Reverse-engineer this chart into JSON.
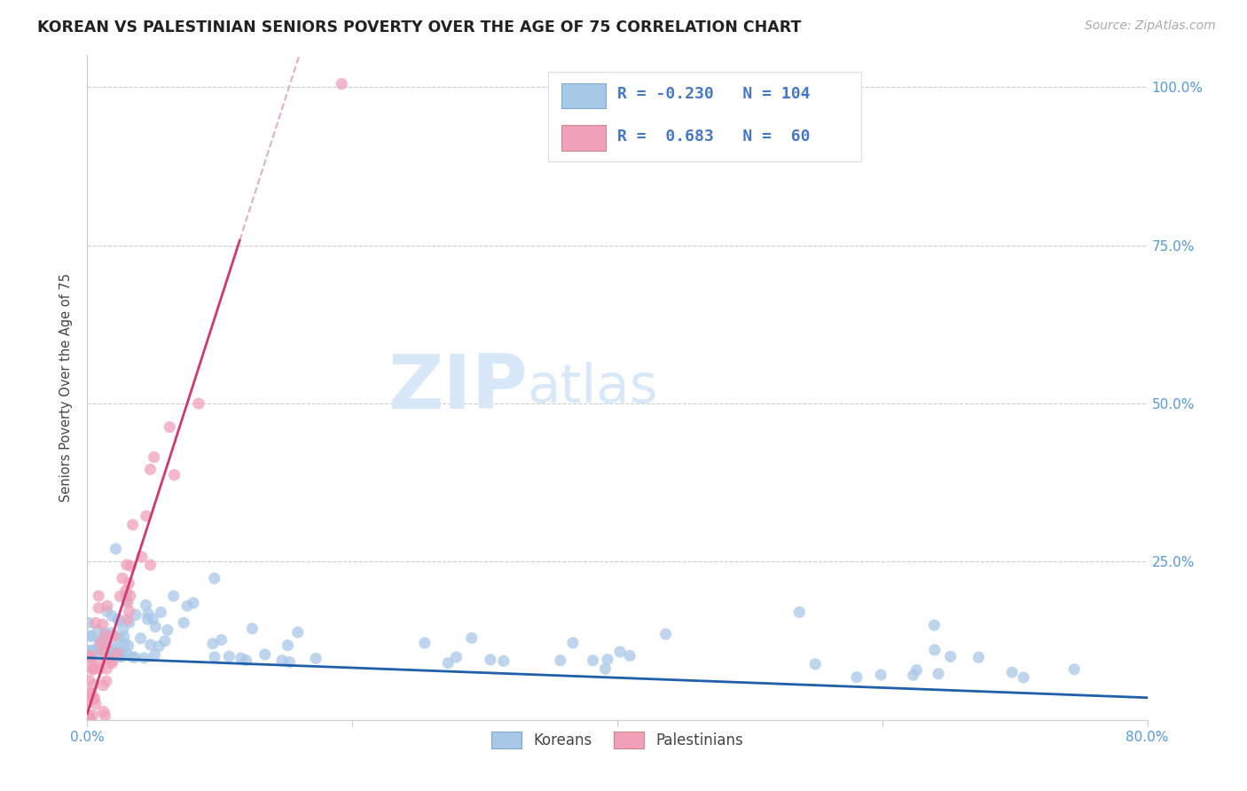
{
  "title": "KOREAN VS PALESTINIAN SENIORS POVERTY OVER THE AGE OF 75 CORRELATION CHART",
  "source": "Source: ZipAtlas.com",
  "ylabel": "Seniors Poverty Over the Age of 75",
  "xlim": [
    0.0,
    0.8
  ],
  "ylim": [
    0.0,
    1.05
  ],
  "korean_R": -0.23,
  "korean_N": 104,
  "palestinian_R": 0.683,
  "palestinian_N": 60,
  "korean_color": "#a8c8e8",
  "palestinian_color": "#f0a0b8",
  "korean_line_color": "#2060aa",
  "palestinian_line_color": "#d03870",
  "dashed_color": "#e0b0c0",
  "watermark_color": "#d8e8f8",
  "background_color": "#ffffff",
  "grid_color": "#cccccc",
  "tick_color": "#5599dd",
  "title_color": "#222222",
  "label_color": "#444444",
  "title_fontsize": 12.5,
  "axis_label_fontsize": 10.5,
  "tick_fontsize": 11,
  "source_fontsize": 10,
  "korean_seed": 7,
  "pal_seed": 99
}
